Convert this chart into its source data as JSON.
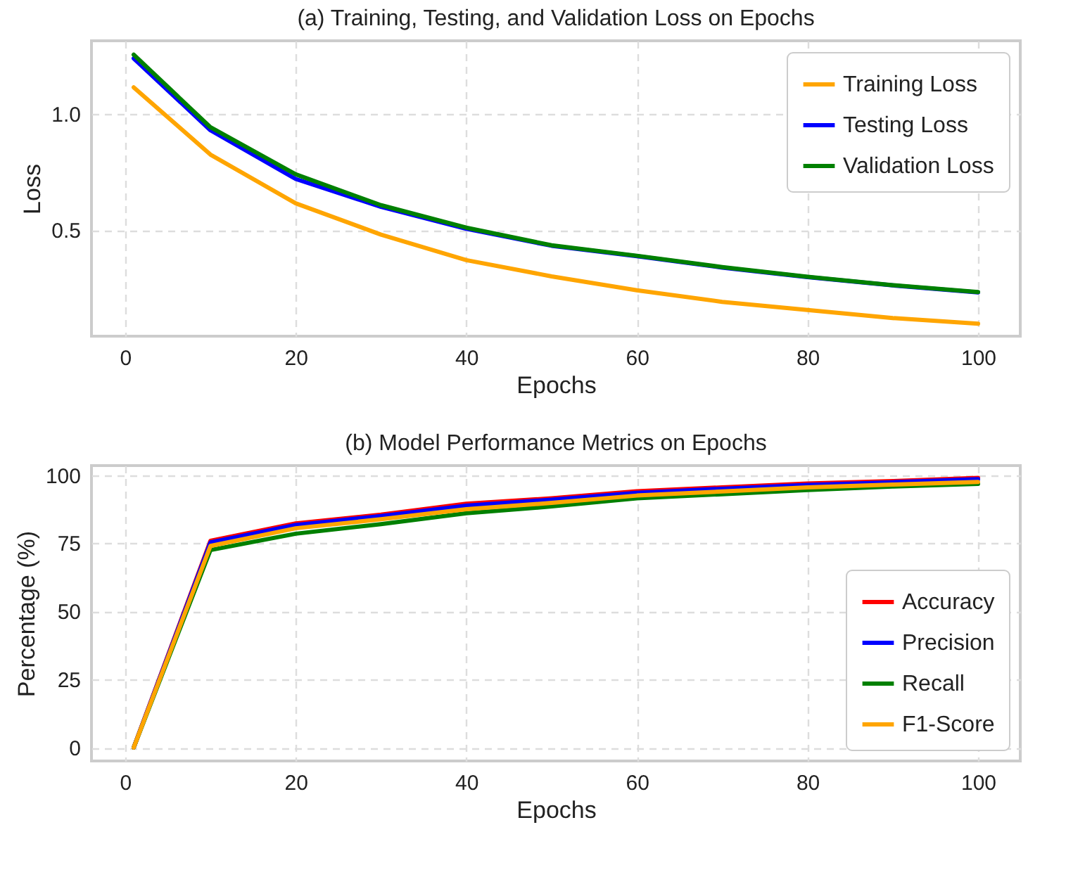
{
  "chart_data": [
    {
      "type": "line",
      "title": "(a) Training, Testing, and Validation Loss on Epochs",
      "xlabel": "Epochs",
      "ylabel": "Loss",
      "x": [
        1,
        10,
        20,
        30,
        40,
        50,
        60,
        70,
        80,
        90,
        100
      ],
      "series": [
        {
          "name": "Training Loss",
          "color": "#ffa500",
          "values": [
            1.115,
            0.825,
            0.615,
            0.48,
            0.37,
            0.3,
            0.24,
            0.19,
            0.155,
            0.12,
            0.096
          ]
        },
        {
          "name": "Testing Loss",
          "color": "#0000ff",
          "values": [
            1.24,
            0.93,
            0.72,
            0.6,
            0.505,
            0.432,
            0.387,
            0.338,
            0.297,
            0.261,
            0.231
          ]
        },
        {
          "name": "Validation Loss",
          "color": "#008000",
          "values": [
            1.256,
            0.943,
            0.74,
            0.607,
            0.51,
            0.434,
            0.389,
            0.34,
            0.298,
            0.262,
            0.232
          ]
        }
      ],
      "xlim": [
        -3.95,
        104.95
      ],
      "xticks": [
        0,
        20,
        40,
        60,
        80,
        100
      ],
      "ylim": [
        0.042,
        1.316
      ],
      "yticks": [
        0.5,
        {
          "value": 1,
          "label": "1.0"
        }
      ],
      "grid": true,
      "legend": "top right",
      "marker": "none",
      "line_style": "solid"
    },
    {
      "type": "line",
      "title": "(b) Model Performance Metrics on Epochs",
      "xlabel": "Epochs",
      "ylabel": "Percentage (%)",
      "x": [
        1,
        10,
        20,
        30,
        40,
        50,
        60,
        70,
        80,
        90,
        100
      ],
      "series": [
        {
          "name": "Accuracy",
          "color": "#ff0000",
          "values": [
            0,
            75.9,
            82.3,
            85.5,
            89.5,
            91.5,
            94.1,
            95.5,
            96.9,
            97.8,
            99
          ]
        },
        {
          "name": "Precision",
          "color": "#0000ff",
          "values": [
            0,
            75.3,
            81.7,
            85,
            88.8,
            91,
            93.5,
            95,
            96.4,
            97.4,
            98.5
          ]
        },
        {
          "name": "Recall",
          "color": "#008000",
          "values": [
            0,
            72.5,
            78.5,
            82,
            86,
            88.5,
            91.5,
            93,
            94.5,
            95.8,
            96.8
          ]
        },
        {
          "name": "F1-Score",
          "color": "#ffa500",
          "values": [
            0,
            74,
            80.5,
            83.8,
            87.5,
            89.8,
            92.5,
            94,
            95.5,
            96.5,
            97.5
          ]
        }
      ],
      "xlim": [
        -3.95,
        104.95
      ],
      "xticks": [
        0,
        20,
        40,
        60,
        80,
        100
      ],
      "ylim": [
        -4.9,
        103.5
      ],
      "yticks": [
        0,
        25,
        50,
        75,
        100
      ],
      "grid": true,
      "legend": "bottom right",
      "marker": "none",
      "line_style": "solid"
    }
  ]
}
